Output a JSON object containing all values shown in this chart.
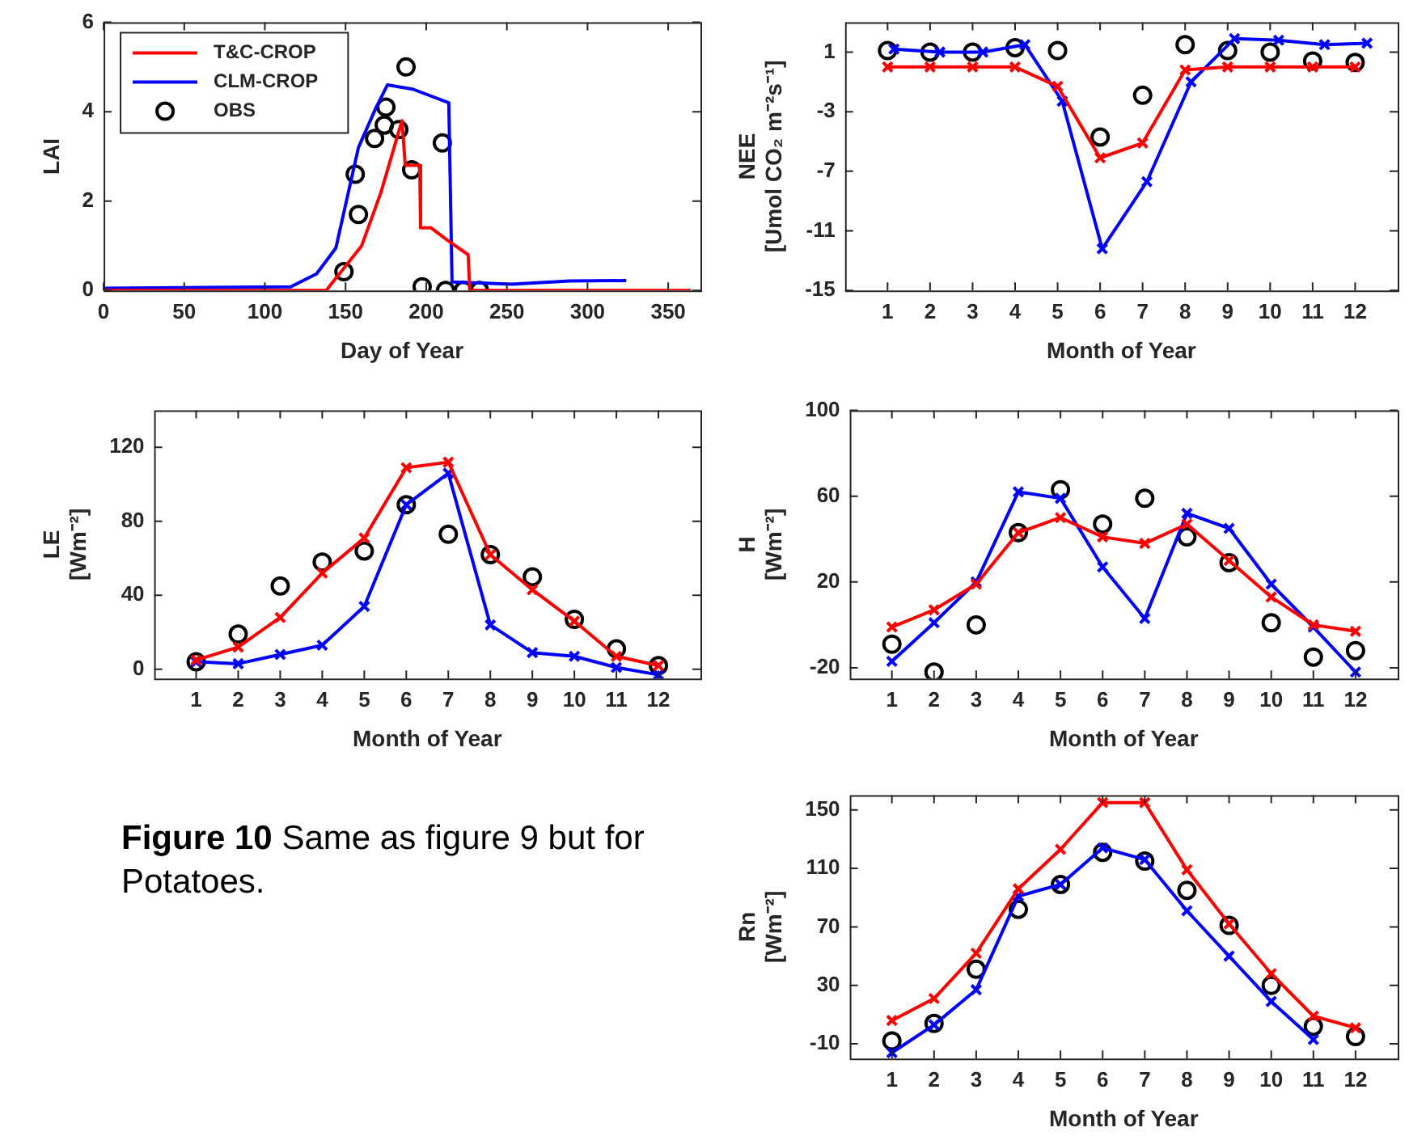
{
  "chart_data": [
    {
      "type": "line",
      "xlabel": "Day of Year",
      "ylabel": "LAI",
      "xlim": [
        0,
        370
      ],
      "xticks": [
        0,
        50,
        100,
        150,
        200,
        250,
        300,
        350
      ],
      "ylim": [
        0,
        6
      ],
      "yticks": [
        0,
        2,
        4,
        6
      ],
      "legend": "top left",
      "series": [
        {
          "name": "T&C-CROP",
          "color": "#ff0000",
          "marker": "none",
          "x": [
            0,
            138,
            160,
            172,
            185,
            187,
            196,
            196.5,
            203,
            214,
            226,
            227,
            364
          ],
          "values": [
            0,
            0,
            1.0,
            2.2,
            3.8,
            2.8,
            2.8,
            1.4,
            1.4,
            1.1,
            0.8,
            0,
            0
          ]
        },
        {
          "name": "CLM-CROP",
          "color": "#0000ff",
          "marker": "none",
          "x": [
            0,
            116,
            132,
            144,
            158,
            169,
            176,
            192,
            214,
            216,
            253,
            289,
            324
          ],
          "values": [
            0.05,
            0.08,
            0.37,
            0.95,
            3.2,
            4.1,
            4.6,
            4.5,
            4.2,
            0.19,
            0.14,
            0.21,
            0.22
          ]
        },
        {
          "name": "OBS",
          "type": "scatter",
          "color": "#000000",
          "marker": "circle",
          "x": [
            149,
            156,
            158,
            168,
            174,
            175,
            183,
            187.5,
            191,
            197.5,
            210,
            212,
            223,
            233
          ],
          "values": [
            0.42,
            2.6,
            1.7,
            3.4,
            3.7,
            4.1,
            3.6,
            5.0,
            2.7,
            0.08,
            3.3,
            0,
            0,
            0
          ]
        }
      ]
    },
    {
      "type": "line",
      "xlabel": "Month of Year",
      "ylabel": "NEE\n[Umol CO₂ m⁻²s⁻¹]",
      "x": [
        1,
        2,
        3,
        4,
        5,
        6,
        7,
        8,
        9,
        10,
        11,
        12
      ],
      "xlim": [
        0,
        13
      ],
      "xticks": [
        1,
        2,
        3,
        4,
        5,
        6,
        7,
        8,
        9,
        10,
        11,
        12
      ],
      "ylim": [
        -15,
        3
      ],
      "yticks": [
        -15,
        -11,
        -7,
        -3,
        1
      ],
      "series": [
        {
          "color": "#ff0000",
          "marker": "cross",
          "values": [
            0,
            0,
            0,
            0,
            -1.3,
            -6.1,
            -5.1,
            -0.2,
            0,
            0,
            0,
            0
          ]
        },
        {
          "color": "#0000ff",
          "marker": "cross",
          "x": [
            1.15,
            2.23,
            3.24,
            4.23,
            5.11,
            6.05,
            7.1,
            8.14,
            9.16,
            10.2,
            11.28,
            12.28
          ],
          "values": [
            1.2,
            1.0,
            1.0,
            1.5,
            -2.3,
            -12.2,
            -7.7,
            -1.0,
            1.9,
            1.8,
            1.5,
            1.6
          ]
        },
        {
          "type": "scatter",
          "color": "#000000",
          "marker": "circle",
          "values": [
            1.1,
            1.0,
            1.0,
            1.3,
            1.1,
            -4.7,
            -1.9,
            1.5,
            1.1,
            1.0,
            0.4,
            0.3
          ]
        }
      ]
    },
    {
      "type": "line",
      "xlabel": "Month of Year",
      "ylabel": "LE\n[Wm⁻²]",
      "x": [
        1,
        2,
        3,
        4,
        5,
        6,
        7,
        8,
        9,
        10,
        11,
        12
      ],
      "xlim": [
        0,
        13
      ],
      "xticks": [
        1,
        2,
        3,
        4,
        5,
        6,
        7,
        8,
        9,
        10,
        11,
        12
      ],
      "ylim": [
        -5,
        140
      ],
      "yticks": [
        0,
        40,
        80,
        120
      ],
      "series": [
        {
          "color": "#ff0000",
          "marker": "cross",
          "values": [
            5,
            12,
            28,
            52,
            71,
            109,
            112,
            62,
            43,
            26,
            7,
            2
          ]
        },
        {
          "color": "#0000ff",
          "marker": "cross",
          "values": [
            4,
            3,
            8,
            13,
            34,
            89,
            106,
            24,
            9,
            7,
            1,
            -3
          ]
        },
        {
          "type": "scatter",
          "color": "#000000",
          "marker": "circle",
          "values": [
            4,
            19,
            45,
            58,
            64,
            89,
            73,
            62,
            50,
            27,
            11,
            2
          ]
        }
      ]
    },
    {
      "type": "line",
      "xlabel": "Month of Year",
      "ylabel": "H\n[Wm⁻²]",
      "x": [
        1,
        2,
        3,
        4,
        5,
        6,
        7,
        8,
        9,
        10,
        11,
        12
      ],
      "xlim": [
        0,
        13
      ],
      "xticks": [
        1,
        2,
        3,
        4,
        5,
        6,
        7,
        8,
        9,
        10,
        11,
        12
      ],
      "ylim": [
        -25,
        100
      ],
      "yticks": [
        -20,
        20,
        60,
        100
      ],
      "series": [
        {
          "color": "#ff0000",
          "marker": "cross",
          "values": [
            -1,
            7,
            19,
            43,
            50,
            41,
            38,
            47,
            30,
            13,
            0,
            -3
          ]
        },
        {
          "color": "#0000ff",
          "marker": "cross",
          "values": [
            -17,
            1,
            20,
            62,
            59,
            27,
            3,
            52,
            45,
            19,
            -1,
            -22
          ]
        },
        {
          "type": "scatter",
          "color": "#000000",
          "marker": "circle",
          "values": [
            -9,
            -22,
            0,
            43,
            63,
            47,
            59,
            41,
            29,
            1,
            -15,
            -12
          ]
        }
      ]
    },
    {
      "type": "line",
      "xlabel": "Month of Year",
      "ylabel": "Rn\n[Wm⁻²]",
      "x": [
        1,
        2,
        3,
        4,
        5,
        6,
        7,
        8,
        9,
        10,
        11,
        12
      ],
      "xlim": [
        0,
        13
      ],
      "xticks": [
        1,
        2,
        3,
        4,
        5,
        6,
        7,
        8,
        9,
        10,
        11,
        12
      ],
      "ylim": [
        -20,
        160
      ],
      "yticks": [
        -10,
        30,
        70,
        110,
        150
      ],
      "series": [
        {
          "color": "#ff0000",
          "marker": "cross",
          "values": [
            6,
            21,
            52,
            96,
            123,
            155,
            155,
            109,
            72,
            38,
            9,
            1
          ]
        },
        {
          "color": "#0000ff",
          "marker": "cross",
          "values": [
            -16,
            3,
            27,
            91,
            99,
            124,
            116,
            81,
            50,
            19,
            -7,
            null
          ]
        },
        {
          "type": "scatter",
          "color": "#000000",
          "marker": "circle",
          "values": [
            -8,
            4,
            41,
            82,
            99,
            121,
            115,
            95,
            71,
            30,
            2,
            -5
          ]
        }
      ]
    },
    {
      "type": "other",
      "title": "Figure 10",
      "subtitle": "Same as figure 9 but for Potatoes."
    }
  ]
}
